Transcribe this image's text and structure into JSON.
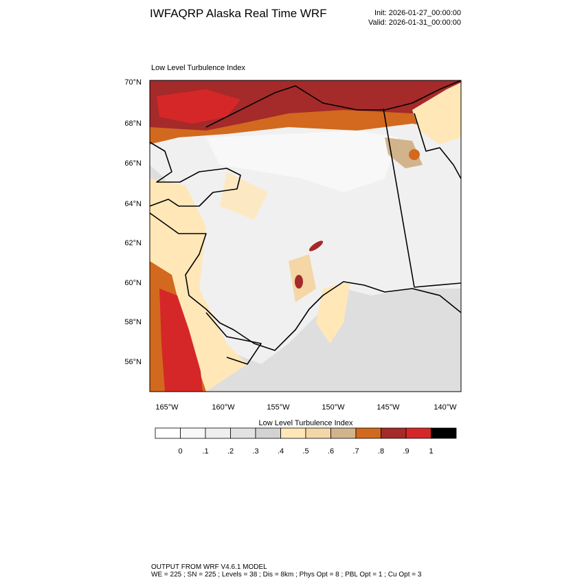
{
  "header": {
    "title": "IWFAQRP Alaska Real Time WRF",
    "init": "Init: 2026-01-27_00:00:00",
    "valid": "Valid: 2026-01-31_00:00:00"
  },
  "map": {
    "title": "Low Level Turbulence Index",
    "lat_labels": [
      "70°N",
      "68°N",
      "66°N",
      "64°N",
      "62°N",
      "60°N",
      "58°N",
      "56°N"
    ],
    "lon_labels": [
      "165°W",
      "160°W",
      "155°W",
      "150°W",
      "145°W",
      "140°W"
    ]
  },
  "colorbar": {
    "title": "Low Level Turbulence Index",
    "colors": [
      "#ffffff",
      "#f8f8f8",
      "#efefef",
      "#e2e2e2",
      "#d3d3d3",
      "#ffe7b8",
      "#f5d6a6",
      "#d2b48c",
      "#d2691e",
      "#a52a2a",
      "#d62728",
      "#000000"
    ],
    "labels": [
      "0",
      ".1",
      ".2",
      ".3",
      ".4",
      ".5",
      ".6",
      ".7",
      ".8",
      ".9",
      "1"
    ]
  },
  "footer": {
    "lines": [
      "OUTPUT FROM WRF V4.6.1 MODEL",
      "WE = 225 ; SN = 225 ; Levels = 38 ; Dis = 8km ; Phys Opt = 8 ; PBL Opt = 1 ; Cu Opt = 3"
    ]
  }
}
